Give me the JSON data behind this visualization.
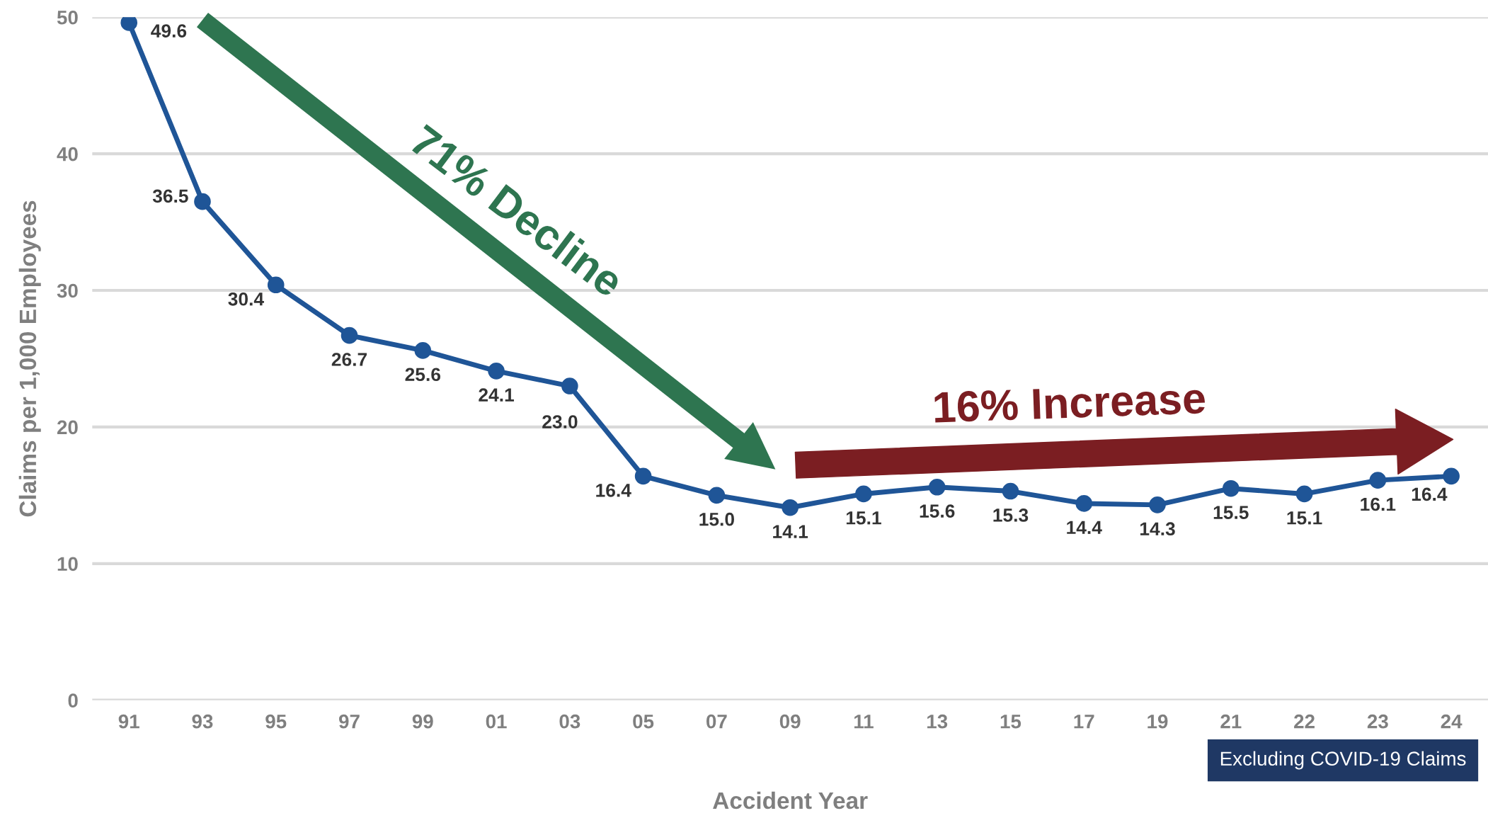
{
  "chart_data": {
    "type": "line",
    "xlabel": "Accident Year",
    "ylabel": "Claims per 1,000 Employees",
    "categories": [
      "91",
      "93",
      "95",
      "97",
      "99",
      "01",
      "03",
      "05",
      "07",
      "09",
      "11",
      "13",
      "15",
      "17",
      "19",
      "21",
      "22",
      "23",
      "24"
    ],
    "series": [
      {
        "color": "#1f5597",
        "values": [
          49.6,
          36.5,
          30.4,
          26.7,
          25.6,
          24.1,
          23.0,
          16.4,
          15.0,
          14.1,
          15.1,
          15.6,
          15.3,
          14.4,
          14.3,
          15.5,
          15.1,
          16.1,
          16.4
        ],
        "value_labels": [
          "49.6",
          "36.5",
          "30.4",
          "26.7",
          "25.6",
          "24.1",
          "23.0",
          "16.4",
          "15.0",
          "14.1",
          "15.1",
          "15.6",
          "15.3",
          "14.4",
          "14.3",
          "15.5",
          "15.1",
          "16.1",
          "16.4"
        ]
      }
    ],
    "ylim": [
      0,
      50
    ],
    "yticks": [
      0,
      10,
      20,
      30,
      40,
      50
    ],
    "grid": "y",
    "marker": "circle",
    "line_style": "solid",
    "annotations": [
      "71% Decline",
      "16% Increase",
      "Excluding COVID-19 Claims"
    ]
  }
}
